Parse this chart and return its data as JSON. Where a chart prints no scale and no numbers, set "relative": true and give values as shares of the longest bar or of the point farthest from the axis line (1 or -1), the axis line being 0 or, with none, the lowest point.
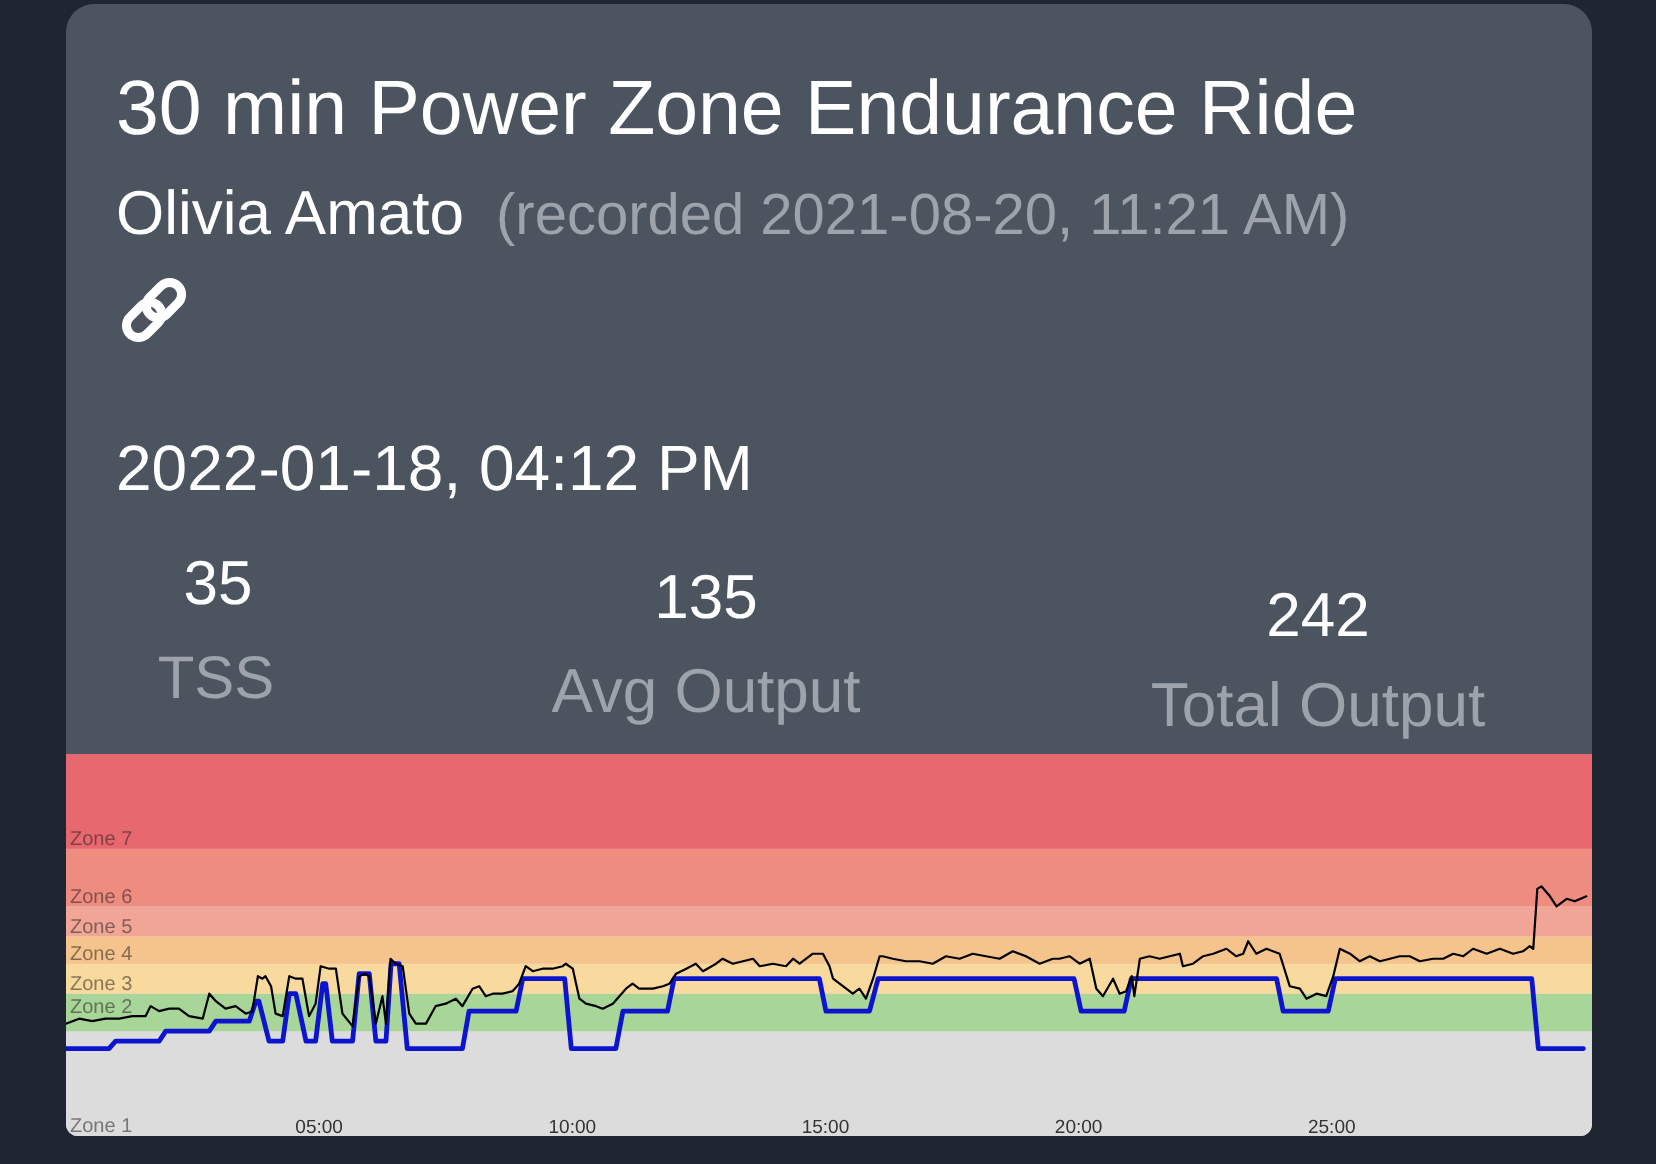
{
  "chart_data": {
    "type": "line",
    "title": "30 min Power Zone Endurance Ride",
    "subtitle": "Olivia Amato",
    "annotations": [
      "(recorded 2021-08-20, 11:21 AM)",
      "2022-01-18, 04:12 PM",
      "35",
      "TSS",
      "135",
      "Avg Output",
      "242",
      "Total Output"
    ],
    "relative": true,
    "xlim": [
      0,
      30.14
    ],
    "xticks": [
      {
        "value": 5,
        "label": "05:00"
      },
      {
        "value": 10,
        "label": "10:00"
      },
      {
        "value": 15,
        "label": "15:00"
      },
      {
        "value": 20,
        "label": "20:00"
      },
      {
        "value": 25,
        "label": "25:00"
      }
    ],
    "bands": [
      {
        "axis": "y",
        "from": 0,
        "to": 0.42,
        "label": "Zone 1",
        "color": "#dcdcdc"
      },
      {
        "axis": "y",
        "from": 0.42,
        "to": 0.57,
        "label": "Zone 2",
        "color": "#a8d598"
      },
      {
        "axis": "y",
        "from": 0.57,
        "to": 0.69,
        "label": "Zone 3",
        "color": "#f8da9e"
      },
      {
        "axis": "y",
        "from": 0.69,
        "to": 0.8,
        "label": "Zone 4",
        "color": "#f5c48c"
      },
      {
        "axis": "y",
        "from": 0.8,
        "to": 0.92,
        "label": "Zone 5",
        "color": "#f1a597"
      },
      {
        "axis": "y",
        "from": 0.92,
        "to": 1.15,
        "label": "Zone 6",
        "color": "#ee8c80"
      },
      {
        "axis": "y",
        "from": 1.15,
        "to": 1.53,
        "label": "Zone 7",
        "color": "#e86870"
      }
    ],
    "series": [
      {
        "color": "#0c14cf",
        "x": [
          0,
          0.85,
          0.98,
          1.84,
          1.97,
          2.83,
          2.96,
          3.62,
          3.75,
          3.81,
          4.01,
          4.28,
          4.41,
          4.54,
          4.74,
          4.93,
          5.07,
          5.13,
          5.26,
          5.66,
          5.79,
          5.99,
          6.12,
          6.32,
          6.42,
          6.58,
          6.74,
          7.83,
          7.96,
          8.89,
          9.02,
          9.85,
          9.98,
          10.86,
          11.0,
          11.88,
          12.01,
          14.88,
          15.01,
          15.87,
          16.04,
          19.91,
          20.05,
          20.9,
          21.04,
          23.91,
          24.04,
          24.93,
          25.07,
          28.95,
          29.08,
          29.97
        ],
        "values": [
          0.35,
          0.35,
          0.38,
          0.38,
          0.42,
          0.42,
          0.46,
          0.46,
          0.54,
          0.54,
          0.38,
          0.38,
          0.57,
          0.57,
          0.38,
          0.38,
          0.61,
          0.61,
          0.38,
          0.38,
          0.65,
          0.65,
          0.38,
          0.38,
          0.69,
          0.69,
          0.35,
          0.35,
          0.5,
          0.5,
          0.63,
          0.63,
          0.35,
          0.35,
          0.5,
          0.5,
          0.63,
          0.63,
          0.5,
          0.5,
          0.63,
          0.63,
          0.5,
          0.5,
          0.63,
          0.63,
          0.5,
          0.5,
          0.63,
          0.63,
          0.35,
          0.35
        ]
      },
      {
        "color": "#000000",
        "x": [
          0,
          0.26,
          0.52,
          0.78,
          1.05,
          1.31,
          1.57,
          1.67,
          1.84,
          2.04,
          2.23,
          2.43,
          2.7,
          2.83,
          2.96,
          3.15,
          3.35,
          3.55,
          3.68,
          3.79,
          3.88,
          3.94,
          4.05,
          4.14,
          4.28,
          4.41,
          4.54,
          4.67,
          4.8,
          4.93,
          5.03,
          5.2,
          5.33,
          5.46,
          5.66,
          5.79,
          5.9,
          5.99,
          6.12,
          6.25,
          6.32,
          6.41,
          6.51,
          6.65,
          6.78,
          6.91,
          7.11,
          7.3,
          7.5,
          7.7,
          7.83,
          8.03,
          8.16,
          8.29,
          8.43,
          8.62,
          8.82,
          8.95,
          9.08,
          9.22,
          9.41,
          9.61,
          9.81,
          9.87,
          10.01,
          10.14,
          10.27,
          10.47,
          10.6,
          10.8,
          11.06,
          11.19,
          11.32,
          11.59,
          11.79,
          11.92,
          12.05,
          12.25,
          12.44,
          12.58,
          12.84,
          12.97,
          13.17,
          13.37,
          13.57,
          13.7,
          13.96,
          14.22,
          14.36,
          14.49,
          14.75,
          14.95,
          15.08,
          15.15,
          15.28,
          15.41,
          15.54,
          15.67,
          15.8,
          15.94,
          16.07,
          16.13,
          16.33,
          16.59,
          16.86,
          17.12,
          17.38,
          17.65,
          17.91,
          18.17,
          18.44,
          18.7,
          18.96,
          19.23,
          19.49,
          19.62,
          19.82,
          20.02,
          20.22,
          20.35,
          20.48,
          20.68,
          20.81,
          20.94,
          21.05,
          21.1,
          21.21,
          21.4,
          21.6,
          21.8,
          22,
          22.06,
          22.26,
          22.46,
          22.66,
          22.92,
          23.11,
          23.25,
          23.35,
          23.51,
          23.71,
          23.97,
          24.17,
          24.37,
          24.5,
          24.7,
          24.89,
          25.03,
          25.16,
          25.36,
          25.55,
          25.75,
          25.95,
          26.15,
          26.34,
          26.54,
          26.74,
          27,
          27.2,
          27.4,
          27.6,
          27.79,
          28.06,
          28.32,
          28.58,
          28.78,
          28.91,
          28.98,
          29.06,
          29.14,
          29.31,
          29.44,
          29.64,
          29.8,
          30.03
        ],
        "values": [
          0.45,
          0.47,
          0.46,
          0.47,
          0.47,
          0.48,
          0.48,
          0.52,
          0.5,
          0.51,
          0.51,
          0.48,
          0.47,
          0.57,
          0.54,
          0.51,
          0.52,
          0.49,
          0.5,
          0.64,
          0.63,
          0.64,
          0.6,
          0.49,
          0.48,
          0.64,
          0.63,
          0.63,
          0.48,
          0.53,
          0.68,
          0.67,
          0.67,
          0.49,
          0.44,
          0.64,
          0.65,
          0.64,
          0.45,
          0.56,
          0.45,
          0.71,
          0.69,
          0.68,
          0.49,
          0.45,
          0.45,
          0.52,
          0.53,
          0.55,
          0.52,
          0.59,
          0.6,
          0.56,
          0.57,
          0.57,
          0.58,
          0.61,
          0.68,
          0.66,
          0.67,
          0.67,
          0.68,
          0.69,
          0.67,
          0.55,
          0.53,
          0.52,
          0.51,
          0.53,
          0.59,
          0.61,
          0.59,
          0.59,
          0.6,
          0.61,
          0.65,
          0.67,
          0.69,
          0.66,
          0.69,
          0.71,
          0.69,
          0.7,
          0.71,
          0.68,
          0.69,
          0.68,
          0.71,
          0.69,
          0.73,
          0.73,
          0.68,
          0.63,
          0.61,
          0.59,
          0.57,
          0.59,
          0.55,
          0.63,
          0.72,
          0.72,
          0.71,
          0.7,
          0.7,
          0.69,
          0.72,
          0.71,
          0.73,
          0.72,
          0.71,
          0.74,
          0.72,
          0.69,
          0.71,
          0.71,
          0.72,
          0.69,
          0.71,
          0.59,
          0.56,
          0.63,
          0.57,
          0.58,
          0.64,
          0.56,
          0.71,
          0.72,
          0.71,
          0.72,
          0.73,
          0.68,
          0.69,
          0.72,
          0.73,
          0.75,
          0.72,
          0.73,
          0.78,
          0.73,
          0.75,
          0.73,
          0.6,
          0.59,
          0.55,
          0.57,
          0.56,
          0.64,
          0.75,
          0.73,
          0.7,
          0.72,
          0.7,
          0.71,
          0.72,
          0.72,
          0.7,
          0.71,
          0.71,
          0.73,
          0.72,
          0.75,
          0.73,
          0.75,
          0.73,
          0.74,
          0.76,
          0.75,
          0.99,
          1,
          0.96,
          0.92,
          0.95,
          0.94,
          0.96
        ]
      }
    ]
  }
}
